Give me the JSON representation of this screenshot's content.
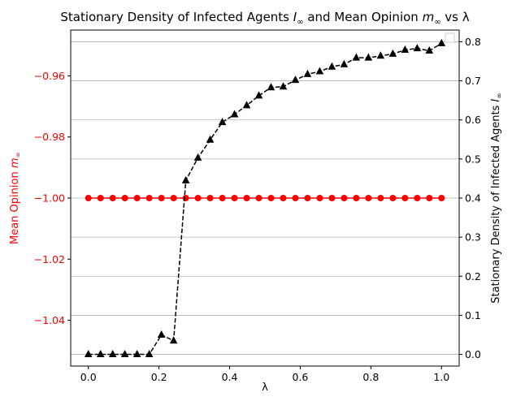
{
  "chart_data": {
    "type": "line",
    "title": "Stationary Density of Infected Agents I∞ and Mean Opinion m∞ vs λ",
    "title_parts": {
      "prefix": "Stationary Density of Infected Agents ",
      "var1": "I",
      "middle": " and Mean Opinion ",
      "var2": "m",
      "suffix": " vs λ",
      "subscript": "∞"
    },
    "xlabel": "λ",
    "ylabel_left": {
      "text": "Mean Opinion ",
      "var": "m",
      "sub": "∞"
    },
    "ylabel_right": {
      "text": "Stationary Density of Infected Agents ",
      "var": "I",
      "sub": "∞"
    },
    "xlim": [
      -0.05,
      1.05
    ],
    "ylim_left": [
      -1.055,
      -0.945
    ],
    "ylim_right": [
      -0.03,
      0.83
    ],
    "x_ticks": [
      "0.0",
      "0.2",
      "0.4",
      "0.6",
      "0.8",
      "1.0"
    ],
    "y_left_ticks": [
      "−1.04",
      "−1.02",
      "−1.00",
      "−0.98",
      "−0.96"
    ],
    "y_right_ticks": [
      "0.0",
      "0.1",
      "0.2",
      "0.3",
      "0.4",
      "0.5",
      "0.6",
      "0.7",
      "0.8"
    ],
    "grid": "horizontal on right axis",
    "legend": "upper right, empty",
    "series": [
      {
        "name": "Mean Opinion",
        "axis": "left",
        "style": "solid line with circle markers",
        "color": "#ff0000",
        "x": [
          0.0,
          0.0345,
          0.069,
          0.1034,
          0.1379,
          0.1724,
          0.2069,
          0.2414,
          0.2759,
          0.3103,
          0.3448,
          0.3793,
          0.4138,
          0.4483,
          0.4828,
          0.5172,
          0.5517,
          0.5862,
          0.6207,
          0.6552,
          0.6897,
          0.7241,
          0.7586,
          0.7931,
          0.8276,
          0.8621,
          0.8966,
          0.931,
          0.9655,
          1.0
        ],
        "y": [
          -1.0,
          -1.0,
          -1.0,
          -1.0,
          -1.0,
          -1.0,
          -1.0,
          -1.0,
          -1.0,
          -1.0,
          -1.0,
          -1.0,
          -1.0,
          -1.0,
          -1.0,
          -1.0,
          -1.0,
          -1.0,
          -1.0,
          -1.0,
          -1.0,
          -1.0,
          -1.0,
          -1.0,
          -1.0,
          -1.0,
          -1.0,
          -1.0,
          -1.0,
          -1.0
        ]
      },
      {
        "name": "Stationary Density of Infected Agents",
        "axis": "right",
        "style": "dashed line with triangle markers",
        "color": "#000000",
        "x": [
          0.0,
          0.0345,
          0.069,
          0.1034,
          0.1379,
          0.1724,
          0.2069,
          0.2414,
          0.2759,
          0.3103,
          0.3448,
          0.3793,
          0.4138,
          0.4483,
          0.4828,
          0.5172,
          0.5517,
          0.5862,
          0.6207,
          0.6552,
          0.6897,
          0.7241,
          0.7586,
          0.7931,
          0.8276,
          0.8621,
          0.8966,
          0.931,
          0.9655,
          1.0
        ],
        "y": [
          0.0,
          0.0,
          0.0,
          0.0,
          0.0,
          0.0,
          0.05,
          0.035,
          0.445,
          0.503,
          0.549,
          0.594,
          0.614,
          0.637,
          0.662,
          0.683,
          0.685,
          0.702,
          0.717,
          0.724,
          0.736,
          0.742,
          0.759,
          0.759,
          0.764,
          0.769,
          0.779,
          0.783,
          0.777,
          0.796
        ]
      }
    ]
  }
}
